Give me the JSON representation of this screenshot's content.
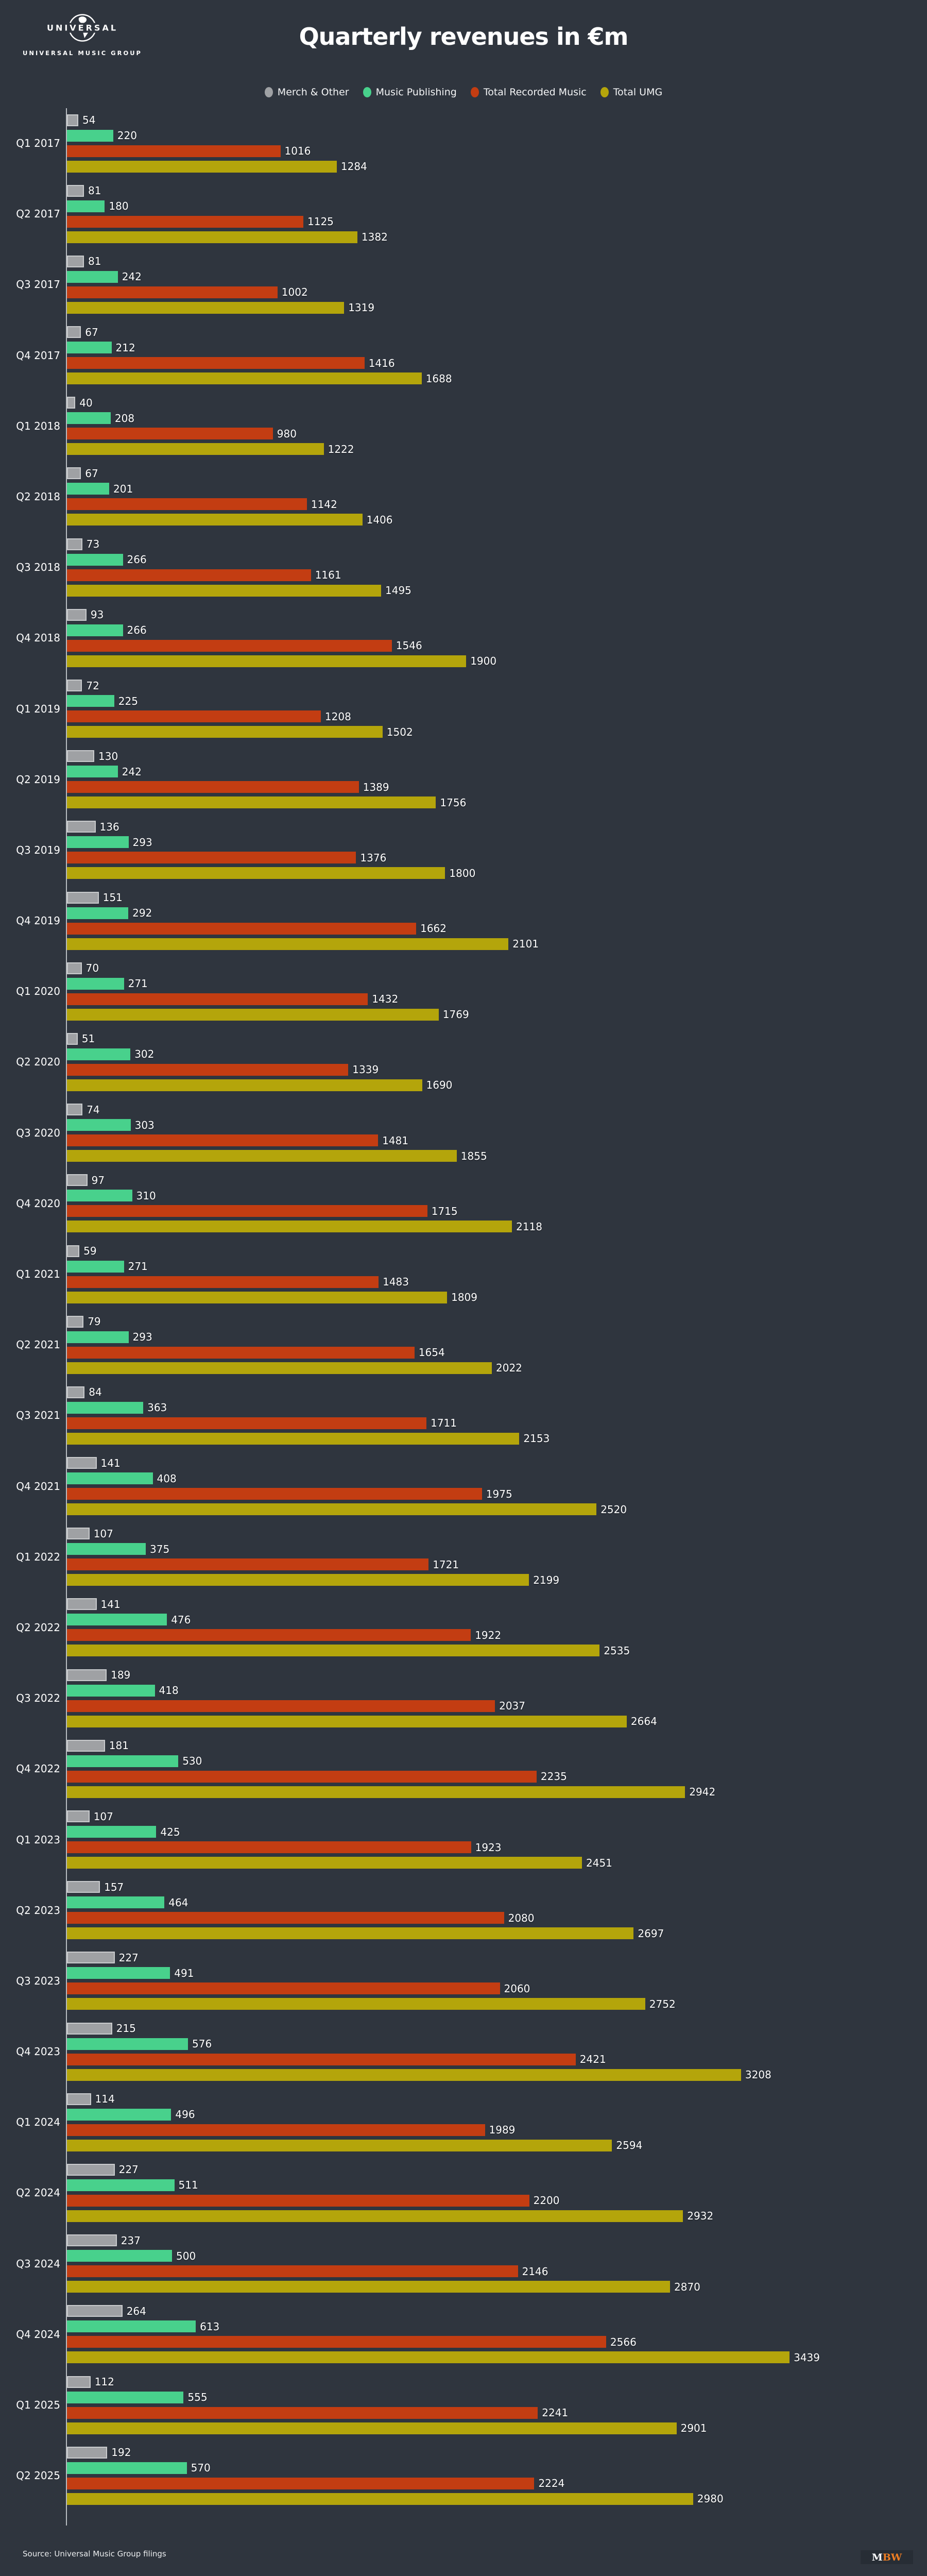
{
  "page": {
    "background": "#2f353e",
    "text_color": "#ffffff"
  },
  "logo": {
    "word": "UNIVERSAL",
    "subtitle": "UNIVERSAL MUSIC GROUP"
  },
  "title": "Quarterly revenues in €m",
  "chart_data": {
    "type": "bar",
    "orientation": "horizontal",
    "title": "Quarterly revenues in €m",
    "grid": false,
    "legend_position": "top-center",
    "axis_color": "#b9bdc2",
    "xlim": [
      0,
      3500
    ],
    "value_labels": true,
    "categories": [
      "Q1 2017",
      "Q2 2017",
      "Q3 2017",
      "Q4 2017",
      "Q1 2018",
      "Q2 2018",
      "Q3 2018",
      "Q4 2018",
      "Q1 2019",
      "Q2 2019",
      "Q3 2019",
      "Q4 2019",
      "Q1 2020",
      "Q2 2020",
      "Q3 2020",
      "Q4 2020",
      "Q1 2021",
      "Q2 2021",
      "Q3 2021",
      "Q4 2021",
      "Q1 2022",
      "Q2 2022",
      "Q3 2022",
      "Q4 2022",
      "Q1 2023",
      "Q2 2023",
      "Q3 2023",
      "Q4 2023",
      "Q1 2024",
      "Q2 2024",
      "Q3 2024",
      "Q4 2024",
      "Q1 2025",
      "Q2 2025"
    ],
    "series": [
      {
        "name": "Merch & Other",
        "color": "#9fa1a4",
        "edge": "#c9cbcd",
        "values": [
          54,
          81,
          81,
          67,
          40,
          67,
          73,
          93,
          72,
          130,
          136,
          151,
          70,
          51,
          74,
          97,
          59,
          79,
          84,
          141,
          107,
          141,
          189,
          181,
          107,
          157,
          227,
          215,
          114,
          227,
          237,
          264,
          112,
          192
        ]
      },
      {
        "name": "Music Publishing",
        "color": "#48d18c",
        "values": [
          220,
          180,
          242,
          212,
          208,
          201,
          266,
          266,
          225,
          242,
          293,
          292,
          271,
          302,
          303,
          310,
          271,
          293,
          363,
          408,
          375,
          476,
          418,
          530,
          425,
          464,
          491,
          576,
          496,
          511,
          500,
          613,
          555,
          570
        ]
      },
      {
        "name": "Total Recorded Music",
        "color": "#c33d12",
        "values": [
          1016,
          1125,
          1002,
          1416,
          980,
          1142,
          1161,
          1546,
          1208,
          1389,
          1376,
          1662,
          1432,
          1339,
          1481,
          1715,
          1483,
          1654,
          1711,
          1975,
          1721,
          1922,
          2037,
          2235,
          1923,
          2080,
          2060,
          2421,
          1989,
          2200,
          2146,
          2566,
          2241,
          2224
        ]
      },
      {
        "name": "Total UMG",
        "color": "#b4a50b",
        "values": [
          1284,
          1382,
          1319,
          1688,
          1222,
          1406,
          1495,
          1900,
          1502,
          1756,
          1800,
          2101,
          1769,
          1690,
          1855,
          2118,
          1809,
          2022,
          2153,
          2520,
          2199,
          2535,
          2664,
          2942,
          2451,
          2697,
          2752,
          3208,
          2594,
          2932,
          2870,
          3439,
          2901,
          2980
        ]
      }
    ]
  },
  "footer": {
    "source": "Source: Universal Music Group filings",
    "mbw_m": "M",
    "mbw_bw": "BW"
  }
}
